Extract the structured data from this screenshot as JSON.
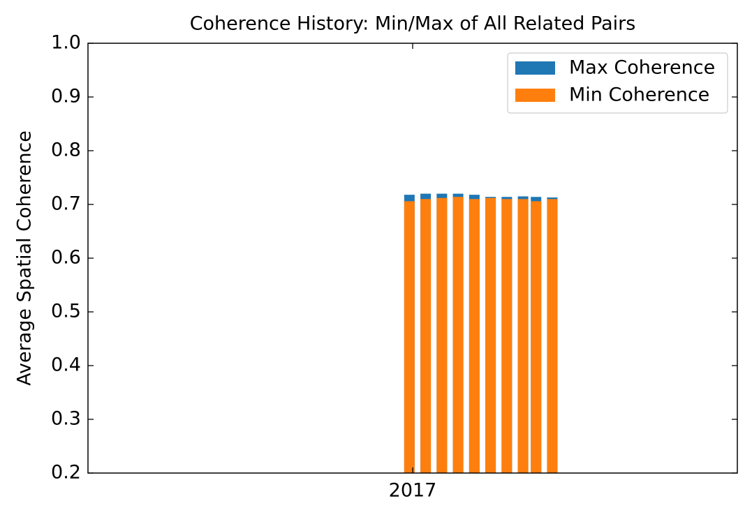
{
  "chart_data": {
    "type": "bar",
    "title": "Coherence History: Min/Max of All Related Pairs",
    "y_label": "Average Spatial Coherence",
    "x": [
      2016.99,
      2017.04,
      2017.09,
      2017.14,
      2017.19,
      2017.24,
      2017.29,
      2017.34,
      2017.38,
      2017.43
    ],
    "series": [
      {
        "name": "Max Coherence",
        "color": "#1f77b4",
        "values": [
          0.718,
          0.72,
          0.72,
          0.72,
          0.718,
          0.714,
          0.714,
          0.715,
          0.714,
          0.713
        ]
      },
      {
        "name": "Min Coherence",
        "color": "#ff7f0e",
        "values": [
          0.706,
          0.71,
          0.712,
          0.714,
          0.71,
          0.712,
          0.71,
          0.71,
          0.706,
          0.71
        ]
      }
    ],
    "xlim": [
      2016,
      2018
    ],
    "xticks": [
      2017
    ],
    "ylim": [
      0.2,
      1.0
    ],
    "yticks": [
      0.2,
      0.3,
      0.4,
      0.5,
      0.6,
      0.7,
      0.8,
      0.9,
      {
        "value": 1.0,
        "label": "1.0"
      }
    ],
    "legend": "upper right",
    "grid": false
  }
}
